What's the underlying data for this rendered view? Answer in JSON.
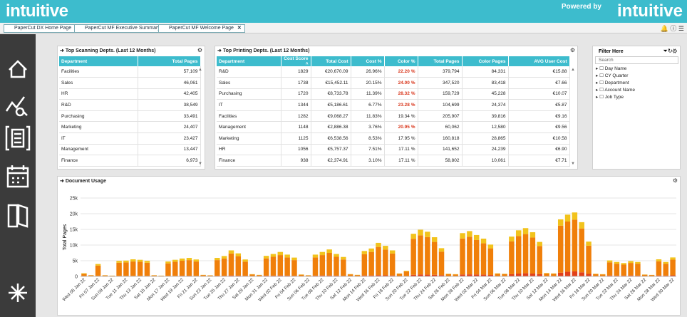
{
  "header": {
    "logo": "intuitive",
    "powered_by": "Powered by",
    "brand": "intuitive"
  },
  "tabs": [
    "PaperCut DX Home Page",
    "PaperCut MF Executive Summary",
    "PaperCut MF Welcome Page"
  ],
  "scanning": {
    "title": "Top Scanning Depts. (Last 12 Months)",
    "columns": [
      "Department",
      "Total Pages"
    ],
    "rows": [
      [
        "Facilities",
        "57,109"
      ],
      [
        "Sales",
        "46,061"
      ],
      [
        "HR",
        "42,405"
      ],
      [
        "R&D",
        "38,549"
      ],
      [
        "Purchasing",
        "33,491"
      ],
      [
        "Marketing",
        "24,407"
      ],
      [
        "IT",
        "23,427"
      ],
      [
        "Management",
        "13,447"
      ],
      [
        "Finance",
        "6,973"
      ]
    ]
  },
  "printing": {
    "title": "Top Printing Depts. (Last 12 Months)",
    "columns": [
      "Department",
      "Cost Score ˄",
      "Total Cost",
      "Cost %",
      "Color %",
      "Total Pages",
      "Color Pages",
      "AVG User Cost"
    ],
    "rows": [
      [
        "R&D",
        "1829",
        "€20,670.09",
        "26.96%",
        "22.20 %",
        "379,794",
        "84,331",
        "€15.88"
      ],
      [
        "Sales",
        "1738",
        "€15,452.11",
        "20.15%",
        "24.00 %",
        "347,520",
        "83,418",
        "€7.66"
      ],
      [
        "Purchasing",
        "1720",
        "€8,733.78",
        "11.39%",
        "28.32 %",
        "159,729",
        "45,228",
        "€10.07"
      ],
      [
        "IT",
        "1344",
        "€5,186.61",
        "6.77%",
        "23.28 %",
        "104,699",
        "24,374",
        "€5.87"
      ],
      [
        "Facilities",
        "1282",
        "€9,068.27",
        "11.83%",
        "19.34 %",
        "205,907",
        "39,816",
        "€9.16"
      ],
      [
        "Management",
        "1148",
        "€2,886.38",
        "3.76%",
        "20.95 %",
        "60,062",
        "12,580",
        "€9.56"
      ],
      [
        "Marketing",
        "1125",
        "€6,538.56",
        "8.53%",
        "17.95 %",
        "160,818",
        "28,865",
        "€10.58"
      ],
      [
        "HR",
        "1056",
        "€5,757.37",
        "7.51%",
        "17.11 %",
        "141,652",
        "24,239",
        "€6.90"
      ],
      [
        "Finance",
        "938",
        "€2,374.91",
        "3.10%",
        "17.11 %",
        "58,802",
        "10,061",
        "€7.71"
      ]
    ],
    "alert_rows": [
      0,
      1,
      2,
      3,
      5
    ],
    "alert_color": "#d9381e"
  },
  "filter": {
    "title": "Filter Here",
    "search": "Search",
    "items": [
      "Day Name",
      "CY Quarter",
      "Department",
      "Account Name",
      "Job Type"
    ]
  },
  "chart_data": {
    "type": "stacked_bar",
    "title": "Document Usage",
    "y_label": "Total Pages",
    "ylim": [
      0,
      25000
    ],
    "yticks": [
      0,
      {
        "value": 5000,
        "label": "5k"
      },
      {
        "value": 10000,
        "label": "10k"
      },
      {
        "value": 15000,
        "label": "15k"
      },
      {
        "value": 20000,
        "label": "20k"
      },
      {
        "value": 25000,
        "label": "25k"
      }
    ],
    "grid": true,
    "categories": [
      "Wed 05 Jan 22",
      null,
      "Fri 07 Jan 22",
      null,
      "Sun 09 Jan 22",
      null,
      "Tue 11 Jan 22",
      null,
      "Thu 13 Jan 22",
      null,
      "Sat 15 Jan 22",
      null,
      "Mon 17 Jan 22",
      null,
      "Wed 19 Jan 22",
      null,
      "Fri 21 Jan 22",
      null,
      "Sun 23 Jan 22",
      null,
      "Tue 25 Jan 22",
      null,
      "Thu 27 Jan 22",
      null,
      "Sat 29 Jan 22",
      null,
      "Mon 31 Jan 22",
      null,
      "Wed 02 Feb 22",
      null,
      "Fri 04 Feb 22",
      null,
      "Sun 06 Feb 22",
      null,
      "Tue 08 Feb 22",
      null,
      "Thu 10 Feb 22",
      null,
      "Sat 12 Feb 22",
      null,
      "Mon 14 Feb 22",
      null,
      "Wed 16 Feb 22",
      null,
      "Fri 18 Feb 22",
      null,
      "Sun 20 Feb 22",
      null,
      "Tue 22 Feb 22",
      null,
      "Thu 24 Feb 22",
      null,
      "Sat 26 Feb 22",
      null,
      "Mon 28 Feb 22",
      null,
      "Wed 02 Mar 22",
      null,
      "Fri 04 Mar 22",
      null,
      "Sun 06 Mar 22",
      null,
      "Tue 08 Mar 22",
      null,
      "Thu 10 Mar 22",
      null,
      "Sat 12 Mar 22",
      null,
      "Mon 14 Mar 22",
      null,
      "Wed 16 Mar 22",
      null,
      "Fri 18 Mar 22",
      null,
      "Sun 20 Mar 22",
      null,
      "Tue 22 Mar 22",
      null,
      "Thu 24 Mar 22",
      null,
      "Sat 26 Mar 22",
      null,
      "Mon 28 Mar 22",
      null,
      "Wed 30 Mar 22"
    ],
    "series": [
      {
        "color": "#e2401a",
        "values": [
          100,
          150,
          150,
          30,
          20,
          150,
          150,
          150,
          150,
          150,
          30,
          20,
          150,
          150,
          200,
          200,
          150,
          30,
          20,
          200,
          200,
          300,
          250,
          200,
          40,
          30,
          250,
          250,
          300,
          250,
          200,
          40,
          30,
          250,
          300,
          300,
          250,
          200,
          50,
          40,
          300,
          300,
          400,
          350,
          300,
          50,
          80,
          500,
          600,
          550,
          500,
          400,
          50,
          40,
          600,
          650,
          600,
          550,
          450,
          60,
          50,
          700,
          900,
          1000,
          900,
          700,
          60,
          50,
          1200,
          1500,
          1600,
          1300,
          800,
          50,
          40,
          300,
          250,
          250,
          300,
          250,
          40,
          30,
          300,
          250,
          350
        ]
      },
      {
        "color": "#f07f0a",
        "values": [
          700,
          200,
          3300,
          300,
          200,
          4200,
          4300,
          4600,
          4500,
          4200,
          300,
          200,
          4000,
          4500,
          4800,
          5000,
          4600,
          400,
          300,
          5000,
          5500,
          7000,
          6200,
          4500,
          600,
          400,
          5500,
          6000,
          6500,
          5800,
          5000,
          500,
          300,
          5800,
          6500,
          7200,
          6000,
          5200,
          600,
          400,
          6800,
          7500,
          9000,
          8200,
          7000,
          800,
          1500,
          11500,
          12500,
          12000,
          10500,
          7500,
          700,
          600,
          11500,
          12000,
          11000,
          10000,
          8500,
          800,
          700,
          10500,
          12000,
          12500,
          11500,
          9000,
          900,
          800,
          15000,
          16000,
          16500,
          14000,
          9000,
          700,
          600,
          4200,
          3800,
          3500,
          4000,
          3800,
          500,
          400,
          4500,
          3800,
          5000
        ]
      },
      {
        "color": "#f2c31c",
        "values": [
          200,
          50,
          500,
          50,
          30,
          600,
          600,
          700,
          650,
          600,
          50,
          30,
          600,
          650,
          700,
          700,
          650,
          60,
          40,
          700,
          800,
          1000,
          900,
          700,
          80,
          60,
          800,
          900,
          1000,
          900,
          800,
          80,
          50,
          900,
          1000,
          1100,
          900,
          800,
          90,
          60,
          1000,
          1100,
          1300,
          1200,
          1000,
          100,
          200,
          1600,
          1800,
          1700,
          1500,
          1100,
          100,
          80,
          1700,
          1800,
          1600,
          1500,
          1200,
          120,
          100,
          1500,
          1800,
          1900,
          1700,
          1300,
          130,
          110,
          2000,
          2200,
          2300,
          2000,
          1300,
          100,
          80,
          600,
          550,
          500,
          600,
          550,
          70,
          50,
          650,
          550,
          700
        ]
      }
    ]
  }
}
